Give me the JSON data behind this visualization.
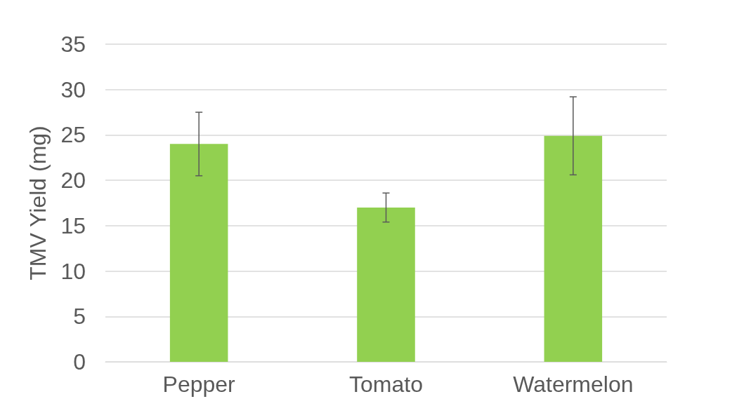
{
  "chart_data": {
    "type": "bar",
    "ylabel": "TMV Yield (mg)",
    "categories": [
      "Pepper",
      "Tomato",
      "Watermelon"
    ],
    "values": [
      24,
      17,
      24.9
    ],
    "errors": [
      3.5,
      1.6,
      4.3
    ],
    "color": "#92d050",
    "ylim": [
      0,
      35
    ],
    "yticks": [
      0,
      5,
      10,
      15,
      20,
      25,
      30,
      35
    ],
    "grid": "y"
  }
}
